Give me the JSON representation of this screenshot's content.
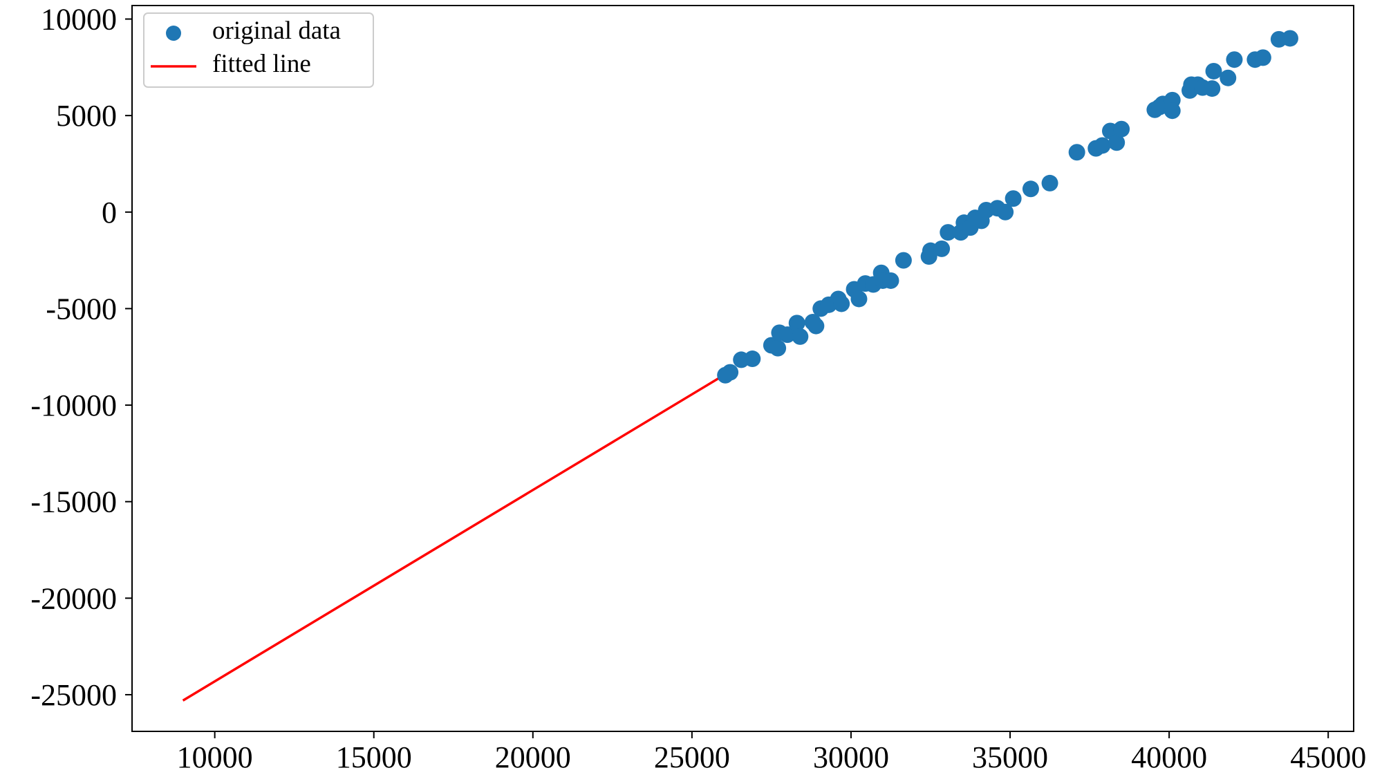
{
  "chart_data": {
    "type": "scatter",
    "title": "",
    "xlabel": "",
    "ylabel": "",
    "xlim": [
      7400,
      45800
    ],
    "ylim": [
      -26900,
      10700
    ],
    "x_ticks": [
      10000,
      15000,
      20000,
      25000,
      30000,
      35000,
      40000,
      45000
    ],
    "y_ticks": [
      -25000,
      -20000,
      -15000,
      -10000,
      -5000,
      0,
      5000,
      10000
    ],
    "x_tick_labels": [
      "10000",
      "15000",
      "20000",
      "25000",
      "30000",
      "35000",
      "40000",
      "45000"
    ],
    "y_tick_labels": [
      "-25000",
      "-20000",
      "-15000",
      "-10000",
      "-5000",
      "0",
      "5000",
      "10000"
    ],
    "grid": false,
    "legend_position": "top-left",
    "series": [
      {
        "name": "original data",
        "kind": "scatter",
        "color": "#1f77b4",
        "points": [
          [
            26050,
            -8450
          ],
          [
            26200,
            -8300
          ],
          [
            26550,
            -7650
          ],
          [
            26900,
            -7600
          ],
          [
            27500,
            -6900
          ],
          [
            27700,
            -7050
          ],
          [
            27750,
            -6250
          ],
          [
            28000,
            -6350
          ],
          [
            28300,
            -5750
          ],
          [
            28400,
            -6450
          ],
          [
            28800,
            -5700
          ],
          [
            28900,
            -5900
          ],
          [
            29050,
            -5000
          ],
          [
            29300,
            -4800
          ],
          [
            29600,
            -4500
          ],
          [
            29700,
            -4750
          ],
          [
            30100,
            -4000
          ],
          [
            30250,
            -4500
          ],
          [
            30450,
            -3700
          ],
          [
            30700,
            -3750
          ],
          [
            30950,
            -3150
          ],
          [
            31000,
            -3550
          ],
          [
            31250,
            -3550
          ],
          [
            31650,
            -2500
          ],
          [
            32450,
            -2300
          ],
          [
            32500,
            -2000
          ],
          [
            32850,
            -1900
          ],
          [
            33050,
            -1050
          ],
          [
            33450,
            -1050
          ],
          [
            33550,
            -550
          ],
          [
            33750,
            -800
          ],
          [
            33900,
            -300
          ],
          [
            34100,
            -450
          ],
          [
            34250,
            100
          ],
          [
            34600,
            200
          ],
          [
            34850,
            0
          ],
          [
            35100,
            700
          ],
          [
            35650,
            1200
          ],
          [
            36250,
            1500
          ],
          [
            37100,
            3100
          ],
          [
            37700,
            3300
          ],
          [
            37900,
            3450
          ],
          [
            38150,
            4200
          ],
          [
            38350,
            3600
          ],
          [
            38500,
            4300
          ],
          [
            39550,
            5300
          ],
          [
            39700,
            5450
          ],
          [
            39800,
            5600
          ],
          [
            40000,
            5500
          ],
          [
            40100,
            5800
          ],
          [
            40100,
            5250
          ],
          [
            40650,
            6300
          ],
          [
            40700,
            6600
          ],
          [
            40900,
            6600
          ],
          [
            41050,
            6450
          ],
          [
            41350,
            6400
          ],
          [
            41400,
            7300
          ],
          [
            41850,
            6950
          ],
          [
            42050,
            7900
          ],
          [
            42700,
            7900
          ],
          [
            42950,
            8000
          ],
          [
            43450,
            8950
          ],
          [
            43800,
            9000
          ]
        ]
      },
      {
        "name": "fitted line",
        "kind": "line",
        "color": "#ff0000",
        "x": [
          9000,
          26000
        ],
        "y": [
          -25300,
          -8450
        ]
      }
    ]
  }
}
